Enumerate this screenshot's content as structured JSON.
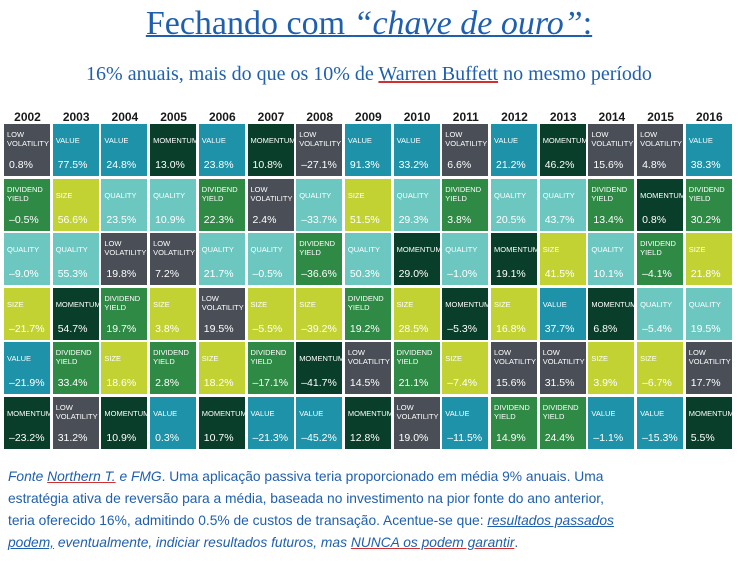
{
  "header": {
    "title_pre": "Fechando com ",
    "title_italic": "“chave de ouro”",
    "title_post": ":",
    "subtitle_pre": "16% anuais, mais do que os 10% de ",
    "subtitle_name": "Warren Buffett",
    "subtitle_post": " no mesmo período"
  },
  "colors": {
    "LOW VOLATILITY": "#4a4e57",
    "VALUE": "#1d92a8",
    "MOMENTUM": "#093e2a",
    "DIVIDEND YIELD": "#2f8a45",
    "SIZE": "#c2d233",
    "QUALITY": "#6cc7c1"
  },
  "text_colors": {
    "LOW VOLATILITY": "#ffffff",
    "VALUE": "#ffffff",
    "MOMENTUM": "#ffffff",
    "DIVIDEND YIELD": "#ffffff",
    "SIZE": "#ffffff",
    "QUALITY": "#ffffff"
  },
  "chart_data": {
    "type": "table",
    "years": [
      "2002",
      "2003",
      "2004",
      "2005",
      "2006",
      "2007",
      "2008",
      "2009",
      "2010",
      "2011",
      "2012",
      "2013",
      "2014",
      "2015",
      "2016"
    ],
    "columns": [
      [
        [
          "LOW VOLATILITY",
          "0.8%"
        ],
        [
          "DIVIDEND YIELD",
          "–0.5%"
        ],
        [
          "QUALITY",
          "–9.0%"
        ],
        [
          "SIZE",
          "–21.7%"
        ],
        [
          "VALUE",
          "–21.9%"
        ],
        [
          "MOMENTUM",
          "–23.2%"
        ]
      ],
      [
        [
          "VALUE",
          "77.5%"
        ],
        [
          "SIZE",
          "56.6%"
        ],
        [
          "QUALITY",
          "55.3%"
        ],
        [
          "MOMENTUM",
          "54.7%"
        ],
        [
          "DIVIDEND YIELD",
          "33.4%"
        ],
        [
          "LOW VOLATILITY",
          "31.2%"
        ]
      ],
      [
        [
          "VALUE",
          "24.8%"
        ],
        [
          "QUALITY",
          "23.5%"
        ],
        [
          "LOW VOLATILITY",
          "19.8%"
        ],
        [
          "DIVIDEND YIELD",
          "19.7%"
        ],
        [
          "SIZE",
          "18.6%"
        ],
        [
          "MOMENTUM",
          "10.9%"
        ]
      ],
      [
        [
          "MOMENTUM",
          "13.0%"
        ],
        [
          "QUALITY",
          "10.9%"
        ],
        [
          "LOW VOLATILITY",
          "7.2%"
        ],
        [
          "SIZE",
          "3.8%"
        ],
        [
          "DIVIDEND YIELD",
          "2.8%"
        ],
        [
          "VALUE",
          "0.3%"
        ]
      ],
      [
        [
          "VALUE",
          "23.8%"
        ],
        [
          "DIVIDEND YIELD",
          "22.3%"
        ],
        [
          "QUALITY",
          "21.7%"
        ],
        [
          "LOW VOLATILITY",
          "19.5%"
        ],
        [
          "SIZE",
          "18.2%"
        ],
        [
          "MOMENTUM",
          "10.7%"
        ]
      ],
      [
        [
          "MOMENTUM",
          "10.8%"
        ],
        [
          "LOW VOLATILITY",
          "2.4%"
        ],
        [
          "QUALITY",
          "–0.5%"
        ],
        [
          "SIZE",
          "–5.5%"
        ],
        [
          "DIVIDEND YIELD",
          "–17.1%"
        ],
        [
          "VALUE",
          "–21.3%"
        ]
      ],
      [
        [
          "LOW VOLATILITY",
          "–27.1%"
        ],
        [
          "QUALITY",
          "–33.7%"
        ],
        [
          "DIVIDEND YIELD",
          "–36.6%"
        ],
        [
          "SIZE",
          "–39.2%"
        ],
        [
          "MOMENTUM",
          "–41.7%"
        ],
        [
          "VALUE",
          "–45.2%"
        ]
      ],
      [
        [
          "VALUE",
          "91.3%"
        ],
        [
          "SIZE",
          "51.5%"
        ],
        [
          "QUALITY",
          "50.3%"
        ],
        [
          "DIVIDEND YIELD",
          "19.2%"
        ],
        [
          "LOW VOLATILITY",
          "14.5%"
        ],
        [
          "MOMENTUM",
          "12.8%"
        ]
      ],
      [
        [
          "VALUE",
          "33.2%"
        ],
        [
          "QUALITY",
          "29.3%"
        ],
        [
          "MOMENTUM",
          "29.0%"
        ],
        [
          "SIZE",
          "28.5%"
        ],
        [
          "DIVIDEND YIELD",
          "21.1%"
        ],
        [
          "LOW VOLATILITY",
          "19.0%"
        ]
      ],
      [
        [
          "LOW VOLATILITY",
          "6.6%"
        ],
        [
          "DIVIDEND YIELD",
          "3.8%"
        ],
        [
          "QUALITY",
          "–1.0%"
        ],
        [
          "MOMENTUM",
          "–5.3%"
        ],
        [
          "SIZE",
          "–7.4%"
        ],
        [
          "VALUE",
          "–11.5%"
        ]
      ],
      [
        [
          "VALUE",
          "21.2%"
        ],
        [
          "QUALITY",
          "20.5%"
        ],
        [
          "MOMENTUM",
          "19.1%"
        ],
        [
          "SIZE",
          "16.8%"
        ],
        [
          "LOW VOLATILITY",
          "15.6%"
        ],
        [
          "DIVIDEND YIELD",
          "14.9%"
        ]
      ],
      [
        [
          "MOMENTUM",
          "46.2%"
        ],
        [
          "QUALITY",
          "43.7%"
        ],
        [
          "SIZE",
          "41.5%"
        ],
        [
          "VALUE",
          "37.7%"
        ],
        [
          "LOW VOLATILITY",
          "31.5%"
        ],
        [
          "DIVIDEND YIELD",
          "24.4%"
        ]
      ],
      [
        [
          "LOW VOLATILITY",
          "15.6%"
        ],
        [
          "DIVIDEND YIELD",
          "13.4%"
        ],
        [
          "QUALITY",
          "10.1%"
        ],
        [
          "MOMENTUM",
          "6.8%"
        ],
        [
          "SIZE",
          "3.9%"
        ],
        [
          "VALUE",
          "–1.1%"
        ]
      ],
      [
        [
          "LOW VOLATILITY",
          "4.8%"
        ],
        [
          "MOMENTUM",
          "0.8%"
        ],
        [
          "DIVIDEND YIELD",
          "–4.1%"
        ],
        [
          "QUALITY",
          "–5.4%"
        ],
        [
          "SIZE",
          "–6.7%"
        ],
        [
          "VALUE",
          "–15.3%"
        ]
      ],
      [
        [
          "VALUE",
          "38.3%"
        ],
        [
          "DIVIDEND YIELD",
          "30.2%"
        ],
        [
          "SIZE",
          "21.8%"
        ],
        [
          "QUALITY",
          "19.5%"
        ],
        [
          "LOW VOLATILITY",
          "17.7%"
        ],
        [
          "MOMENTUM",
          "5.5%"
        ]
      ]
    ]
  },
  "footer": {
    "source_pre": "Fonte ",
    "source_name": "Northern T.",
    "source_post": " e FMG",
    "line1_rest": ". Uma aplicação passiva teria proporcionado em média 9% anuais. Uma",
    "line2": "estratégia ativa de reversão para a média, baseada no investimento na pior fonte do ano anterior,",
    "line3_a": "teria oferecido 16%, admitindo 0.5% de custos de transação. Acentue-se que: ",
    "line3_b": "resultados passados",
    "line4_a": "podem,",
    "line4_b": "  eventualmente,  indiciar resultados futuros, mas ",
    "line4_c": "NUNCA  os podem  garantir",
    "line4_end": "."
  }
}
